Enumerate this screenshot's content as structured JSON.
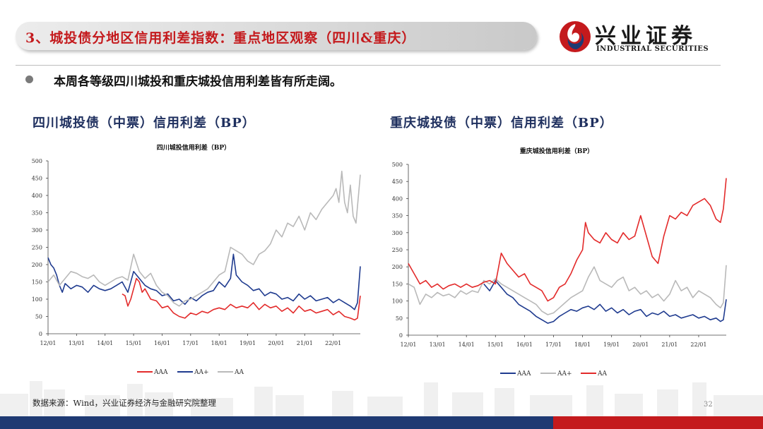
{
  "header": {
    "title": "3、城投债分地区信用利差指数：重点地区观察（四川&重庆）"
  },
  "logo": {
    "cn": "兴业证券",
    "en": "INDUSTRIAL SECURITIES"
  },
  "bullet": {
    "text": "本周各等级四川城投和重庆城投信用利差皆有所走阔。"
  },
  "footer": {
    "source": "数据来源：Wind，兴业证券经济与金融研究院整理",
    "page": "32"
  },
  "colors": {
    "AAA_sc": "#e32b2b",
    "AAplus_sc": "#1f3b8f",
    "AA_sc": "#b9b9b9",
    "brand_red": "#c41a1d",
    "brand_blue": "#1f3a73"
  },
  "chart_data": [
    {
      "type": "line",
      "heading": "四川城投债（中票）信用利差（BP）",
      "title": "四川城投信用利差（BP）",
      "xlabel": "",
      "ylabel": "",
      "ylim": [
        0,
        500
      ],
      "yticks": [
        "0",
        "50",
        "100",
        "150",
        "200",
        "250",
        "300",
        "350",
        "400",
        "450",
        "500"
      ],
      "xticks": [
        "12/01",
        "13/01",
        "14/01",
        "15/01",
        "16/01",
        "17/01",
        "18/01",
        "19/01",
        "20/01",
        "21/01",
        "22/01"
      ],
      "xrange": [
        2012.0,
        2022.95
      ],
      "legend_position": "bottom",
      "series": [
        {
          "name": "AAA",
          "color": "#e32b2b",
          "x": [
            2014.6,
            2014.7,
            2014.8,
            2014.9,
            2015.0,
            2015.1,
            2015.2,
            2015.3,
            2015.4,
            2015.5,
            2015.6,
            2015.8,
            2016.0,
            2016.2,
            2016.4,
            2016.6,
            2016.8,
            2017.0,
            2017.2,
            2017.4,
            2017.6,
            2017.8,
            2018.0,
            2018.2,
            2018.4,
            2018.6,
            2018.8,
            2019.0,
            2019.2,
            2019.4,
            2019.6,
            2019.8,
            2020.0,
            2020.2,
            2020.4,
            2020.6,
            2020.8,
            2021.0,
            2021.2,
            2021.4,
            2021.6,
            2021.8,
            2022.0,
            2022.2,
            2022.4,
            2022.6,
            2022.75,
            2022.85,
            2022.95
          ],
          "values": [
            115,
            110,
            80,
            100,
            130,
            160,
            150,
            120,
            130,
            115,
            100,
            95,
            75,
            80,
            60,
            50,
            45,
            60,
            55,
            65,
            60,
            70,
            75,
            70,
            85,
            75,
            80,
            75,
            90,
            70,
            85,
            75,
            80,
            65,
            75,
            60,
            80,
            65,
            70,
            60,
            65,
            70,
            55,
            65,
            50,
            45,
            40,
            45,
            110
          ]
        },
        {
          "name": "AA+",
          "color": "#1f3b8f",
          "x": [
            2012.0,
            2012.1,
            2012.2,
            2012.3,
            2012.4,
            2012.5,
            2012.6,
            2012.8,
            2013.0,
            2013.2,
            2013.4,
            2013.6,
            2013.8,
            2014.0,
            2014.2,
            2014.4,
            2014.6,
            2014.8,
            2015.0,
            2015.2,
            2015.4,
            2015.6,
            2015.8,
            2016.0,
            2016.2,
            2016.4,
            2016.6,
            2016.8,
            2017.0,
            2017.2,
            2017.4,
            2017.6,
            2017.8,
            2018.0,
            2018.2,
            2018.4,
            2018.5,
            2018.6,
            2018.8,
            2019.0,
            2019.2,
            2019.4,
            2019.6,
            2019.8,
            2020.0,
            2020.2,
            2020.4,
            2020.6,
            2020.8,
            2021.0,
            2021.2,
            2021.4,
            2021.6,
            2021.8,
            2022.0,
            2022.2,
            2022.4,
            2022.6,
            2022.75,
            2022.85,
            2022.95
          ],
          "values": [
            220,
            200,
            190,
            170,
            140,
            120,
            145,
            130,
            140,
            135,
            120,
            140,
            130,
            125,
            130,
            140,
            150,
            120,
            180,
            160,
            140,
            130,
            125,
            110,
            115,
            95,
            100,
            85,
            105,
            95,
            110,
            120,
            125,
            150,
            135,
            160,
            230,
            170,
            150,
            140,
            125,
            130,
            110,
            120,
            115,
            100,
            105,
            95,
            115,
            100,
            110,
            95,
            100,
            105,
            90,
            100,
            90,
            80,
            70,
            90,
            195
          ]
        },
        {
          "name": "AA",
          "color": "#b9b9b9",
          "x": [
            2012.0,
            2012.2,
            2012.4,
            2012.6,
            2012.8,
            2013.0,
            2013.2,
            2013.4,
            2013.6,
            2013.8,
            2014.0,
            2014.2,
            2014.4,
            2014.6,
            2014.8,
            2015.0,
            2015.2,
            2015.4,
            2015.6,
            2015.8,
            2016.0,
            2016.2,
            2016.4,
            2016.6,
            2016.8,
            2017.0,
            2017.2,
            2017.4,
            2017.6,
            2017.8,
            2018.0,
            2018.2,
            2018.4,
            2018.6,
            2018.8,
            2019.0,
            2019.2,
            2019.4,
            2019.6,
            2019.8,
            2020.0,
            2020.2,
            2020.4,
            2020.6,
            2020.8,
            2021.0,
            2021.2,
            2021.4,
            2021.6,
            2021.8,
            2022.0,
            2022.1,
            2022.2,
            2022.3,
            2022.4,
            2022.5,
            2022.6,
            2022.7,
            2022.8,
            2022.95
          ],
          "values": [
            150,
            170,
            140,
            160,
            180,
            175,
            165,
            160,
            170,
            150,
            140,
            150,
            160,
            165,
            155,
            230,
            180,
            160,
            175,
            140,
            120,
            110,
            90,
            80,
            95,
            100,
            110,
            120,
            130,
            150,
            170,
            180,
            250,
            240,
            230,
            210,
            200,
            230,
            240,
            260,
            300,
            280,
            320,
            310,
            340,
            300,
            350,
            330,
            360,
            380,
            400,
            420,
            380,
            470,
            380,
            350,
            430,
            340,
            320,
            460
          ]
        }
      ]
    },
    {
      "type": "line",
      "heading": "重庆城投债（中票）信用利差（BP）",
      "title": "重庆城投信用利差（BP）",
      "xlabel": "",
      "ylabel": "",
      "ylim": [
        0,
        500
      ],
      "yticks": [
        "0",
        "50",
        "100",
        "150",
        "200",
        "250",
        "300",
        "350",
        "400",
        "450",
        "500"
      ],
      "xticks": [
        "12/01",
        "13/01",
        "14/01",
        "15/01",
        "16/01",
        "17/01",
        "18/01",
        "19/01",
        "20/01",
        "21/01",
        "22/01"
      ],
      "xrange": [
        2012.0,
        2022.95
      ],
      "legend_position": "bottom",
      "series": [
        {
          "name": "AAA",
          "color": "#1f3b8f",
          "x": [
            2014.6,
            2014.8,
            2015.0,
            2015.2,
            2015.4,
            2015.6,
            2015.8,
            2016.0,
            2016.2,
            2016.4,
            2016.6,
            2016.8,
            2017.0,
            2017.2,
            2017.4,
            2017.6,
            2017.8,
            2018.0,
            2018.2,
            2018.4,
            2018.6,
            2018.8,
            2019.0,
            2019.2,
            2019.4,
            2019.6,
            2019.8,
            2020.0,
            2020.2,
            2020.4,
            2020.6,
            2020.8,
            2021.0,
            2021.2,
            2021.4,
            2021.6,
            2021.8,
            2022.0,
            2022.2,
            2022.4,
            2022.6,
            2022.75,
            2022.85,
            2022.95
          ],
          "values": [
            150,
            130,
            160,
            140,
            120,
            110,
            90,
            80,
            70,
            55,
            45,
            35,
            40,
            55,
            65,
            75,
            70,
            80,
            85,
            75,
            90,
            70,
            80,
            65,
            75,
            60,
            70,
            75,
            55,
            65,
            60,
            70,
            55,
            60,
            50,
            55,
            60,
            50,
            55,
            45,
            50,
            40,
            45,
            105
          ]
        },
        {
          "name": "AA+",
          "color": "#b9b9b9",
          "x": [
            2012.0,
            2012.2,
            2012.4,
            2012.6,
            2012.8,
            2013.0,
            2013.2,
            2013.4,
            2013.6,
            2013.8,
            2014.0,
            2014.2,
            2014.4,
            2014.6,
            2014.8,
            2015.0,
            2015.2,
            2015.4,
            2015.6,
            2015.8,
            2016.0,
            2016.2,
            2016.4,
            2016.6,
            2016.8,
            2017.0,
            2017.2,
            2017.4,
            2017.6,
            2017.8,
            2018.0,
            2018.2,
            2018.4,
            2018.6,
            2018.8,
            2019.0,
            2019.2,
            2019.4,
            2019.6,
            2019.8,
            2020.0,
            2020.2,
            2020.4,
            2020.6,
            2020.8,
            2021.0,
            2021.2,
            2021.4,
            2021.6,
            2021.8,
            2022.0,
            2022.2,
            2022.4,
            2022.6,
            2022.75,
            2022.85,
            2022.95
          ],
          "values": [
            150,
            140,
            90,
            120,
            110,
            125,
            115,
            120,
            110,
            130,
            120,
            130,
            125,
            160,
            150,
            165,
            150,
            140,
            130,
            120,
            110,
            100,
            90,
            70,
            60,
            65,
            80,
            95,
            110,
            120,
            130,
            170,
            200,
            160,
            150,
            140,
            160,
            170,
            130,
            140,
            120,
            130,
            110,
            120,
            100,
            120,
            160,
            130,
            140,
            110,
            130,
            120,
            110,
            90,
            80,
            95,
            205
          ]
        },
        {
          "name": "AA",
          "color": "#e32b2b",
          "x": [
            2012.0,
            2012.2,
            2012.4,
            2012.6,
            2012.8,
            2013.0,
            2013.2,
            2013.4,
            2013.6,
            2013.8,
            2014.0,
            2014.2,
            2014.4,
            2014.6,
            2014.8,
            2015.0,
            2015.2,
            2015.4,
            2015.6,
            2015.8,
            2016.0,
            2016.2,
            2016.4,
            2016.6,
            2016.8,
            2017.0,
            2017.2,
            2017.4,
            2017.6,
            2017.8,
            2018.0,
            2018.1,
            2018.2,
            2018.4,
            2018.6,
            2018.8,
            2019.0,
            2019.2,
            2019.4,
            2019.6,
            2019.8,
            2020.0,
            2020.2,
            2020.4,
            2020.6,
            2020.8,
            2021.0,
            2021.2,
            2021.4,
            2021.6,
            2021.8,
            2022.0,
            2022.2,
            2022.4,
            2022.6,
            2022.75,
            2022.85,
            2022.95
          ],
          "values": [
            210,
            180,
            150,
            160,
            140,
            150,
            135,
            145,
            150,
            140,
            150,
            140,
            145,
            155,
            160,
            150,
            240,
            210,
            190,
            170,
            180,
            150,
            140,
            130,
            100,
            110,
            140,
            150,
            180,
            220,
            250,
            330,
            300,
            280,
            270,
            300,
            280,
            270,
            300,
            280,
            290,
            350,
            290,
            230,
            210,
            290,
            350,
            340,
            360,
            350,
            380,
            390,
            400,
            380,
            340,
            330,
            370,
            460
          ]
        }
      ]
    }
  ]
}
